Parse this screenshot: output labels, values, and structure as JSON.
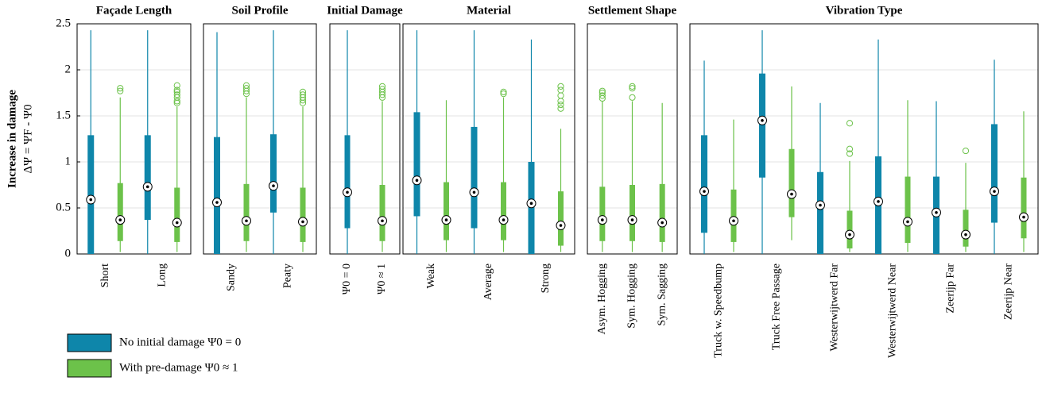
{
  "chart_data": [
    {
      "type": "box",
      "title": "Façade Length",
      "ylabel": [
        "Increase in damage",
        "ΔΨ = ΨF - Ψ0"
      ],
      "ylim": [
        0,
        2.5
      ],
      "yticks": [
        0,
        0.5,
        1,
        1.5,
        2,
        2.5
      ],
      "grid": true,
      "categories": [
        "Short",
        "Long"
      ],
      "series": [
        {
          "name": "No initial damage Ψ0 = 0",
          "color": "#0e86aa",
          "values": [
            {
              "min": 0,
              "q1": 0,
              "median": 0.59,
              "q3": 1.29,
              "max": 2.43,
              "outliers": []
            },
            {
              "min": 0,
              "q1": 0.37,
              "median": 0.73,
              "q3": 1.29,
              "max": 2.43,
              "outliers": []
            }
          ]
        },
        {
          "name": "With pre-damage Ψ0 ≈ 1",
          "color": "#6cc24a",
          "values": [
            {
              "min": 0.02,
              "q1": 0.14,
              "median": 0.37,
              "q3": 0.77,
              "max": 1.7,
              "outliers": [
                1.77,
                1.8
              ]
            },
            {
              "min": 0.02,
              "q1": 0.13,
              "median": 0.34,
              "q3": 0.72,
              "max": 1.6,
              "outliers": [
                1.64,
                1.66,
                1.7,
                1.73,
                1.76,
                1.78,
                1.83
              ]
            }
          ]
        }
      ]
    },
    {
      "type": "box",
      "title": "Soil Profile",
      "ylim": [
        0,
        2.5
      ],
      "grid": true,
      "categories": [
        "Sandy",
        "Peaty"
      ],
      "series": [
        {
          "color": "#0e86aa",
          "values": [
            {
              "min": 0,
              "q1": 0,
              "median": 0.56,
              "q3": 1.27,
              "max": 2.41,
              "outliers": []
            },
            {
              "min": 0,
              "q1": 0.45,
              "median": 0.74,
              "q3": 1.3,
              "max": 2.43,
              "outliers": []
            }
          ]
        },
        {
          "color": "#6cc24a",
          "values": [
            {
              "min": 0.02,
              "q1": 0.14,
              "median": 0.36,
              "q3": 0.76,
              "max": 1.7,
              "outliers": [
                1.74,
                1.77,
                1.8,
                1.83
              ]
            },
            {
              "min": 0.02,
              "q1": 0.13,
              "median": 0.35,
              "q3": 0.72,
              "max": 1.6,
              "outliers": [
                1.64,
                1.67,
                1.7,
                1.73,
                1.76
              ]
            }
          ]
        }
      ]
    },
    {
      "type": "box",
      "title": "Initial Damage",
      "ylim": [
        0,
        2.5
      ],
      "grid": true,
      "categories": [
        "Ψ0 = 0",
        "Ψ0 ≈ 1"
      ],
      "series": [
        {
          "color": "#0e86aa",
          "values": [
            {
              "min": 0,
              "q1": 0.28,
              "median": 0.67,
              "q3": 1.29,
              "max": 2.43,
              "outliers": []
            },
            null
          ]
        },
        {
          "color": "#6cc24a",
          "values": [
            null,
            {
              "min": 0.02,
              "q1": 0.14,
              "median": 0.36,
              "q3": 0.75,
              "max": 1.66,
              "outliers": [
                1.7,
                1.73,
                1.76,
                1.79,
                1.82
              ]
            }
          ]
        }
      ]
    },
    {
      "type": "box",
      "title": "Material",
      "ylim": [
        0,
        2.5
      ],
      "grid": true,
      "categories": [
        "Weak",
        "Average",
        "Strong"
      ],
      "series": [
        {
          "color": "#0e86aa",
          "values": [
            {
              "min": 0,
              "q1": 0.41,
              "median": 0.8,
              "q3": 1.54,
              "max": 2.43,
              "outliers": []
            },
            {
              "min": 0,
              "q1": 0.28,
              "median": 0.67,
              "q3": 1.38,
              "max": 2.43,
              "outliers": []
            },
            {
              "min": 0,
              "q1": 0,
              "median": 0.55,
              "q3": 1.0,
              "max": 2.33,
              "outliers": []
            }
          ]
        },
        {
          "color": "#6cc24a",
          "values": [
            {
              "min": 0.02,
              "q1": 0.15,
              "median": 0.37,
              "q3": 0.78,
              "max": 1.67,
              "outliers": []
            },
            {
              "min": 0.02,
              "q1": 0.15,
              "median": 0.37,
              "q3": 0.78,
              "max": 1.7,
              "outliers": [
                1.74,
                1.76
              ]
            },
            {
              "min": 0.02,
              "q1": 0.09,
              "median": 0.31,
              "q3": 0.68,
              "max": 1.36,
              "outliers": [
                1.58,
                1.62,
                1.66,
                1.72,
                1.78,
                1.82
              ]
            }
          ]
        }
      ]
    },
    {
      "type": "box",
      "title": "Settlement Shape",
      "ylim": [
        0,
        2.5
      ],
      "grid": true,
      "categories": [
        "Asym. Hogging",
        "Sym. Hogging",
        "Sym. Sagging"
      ],
      "series": [
        {
          "color": "#6cc24a",
          "values": [
            {
              "min": 0.02,
              "q1": 0.14,
              "median": 0.37,
              "q3": 0.73,
              "max": 1.66,
              "outliers": [
                1.69,
                1.72,
                1.75,
                1.77
              ]
            },
            {
              "min": 0.02,
              "q1": 0.14,
              "median": 0.37,
              "q3": 0.75,
              "max": 1.66,
              "outliers": [
                1.7,
                1.8,
                1.82
              ]
            },
            {
              "min": 0.02,
              "q1": 0.13,
              "median": 0.34,
              "q3": 0.76,
              "max": 1.64,
              "outliers": []
            }
          ]
        }
      ]
    },
    {
      "type": "box",
      "title": "Vibration Type",
      "ylim": [
        0,
        2.5
      ],
      "grid": true,
      "categories": [
        "Truck w. Speedbump",
        "Truck Free Passage",
        "Westerwijtwerd Far",
        "Westerwijtwerd Near",
        "Zeerijp Far",
        "Zeerijp Near"
      ],
      "series": [
        {
          "color": "#0e86aa",
          "values": [
            {
              "min": 0,
              "q1": 0.23,
              "median": 0.68,
              "q3": 1.29,
              "max": 2.1,
              "outliers": []
            },
            {
              "min": 0,
              "q1": 0.83,
              "median": 1.45,
              "q3": 1.96,
              "max": 2.43,
              "outliers": []
            },
            {
              "min": 0,
              "q1": 0,
              "median": 0.53,
              "q3": 0.89,
              "max": 1.64,
              "outliers": []
            },
            {
              "min": 0,
              "q1": 0,
              "median": 0.57,
              "q3": 1.06,
              "max": 2.33,
              "outliers": []
            },
            {
              "min": 0,
              "q1": 0,
              "median": 0.45,
              "q3": 0.84,
              "max": 1.66,
              "outliers": []
            },
            {
              "min": 0,
              "q1": 0.34,
              "median": 0.68,
              "q3": 1.41,
              "max": 2.11,
              "outliers": []
            }
          ]
        },
        {
          "color": "#6cc24a",
          "values": [
            {
              "min": 0.02,
              "q1": 0.13,
              "median": 0.36,
              "q3": 0.7,
              "max": 1.46,
              "outliers": []
            },
            {
              "min": 0.15,
              "q1": 0.4,
              "median": 0.65,
              "q3": 1.14,
              "max": 1.82,
              "outliers": []
            },
            {
              "min": 0.02,
              "q1": 0.06,
              "median": 0.21,
              "q3": 0.47,
              "max": 1.01,
              "outliers": [
                1.09,
                1.14,
                1.42
              ]
            },
            {
              "min": 0.02,
              "q1": 0.12,
              "median": 0.35,
              "q3": 0.84,
              "max": 1.67,
              "outliers": []
            },
            {
              "min": 0.02,
              "q1": 0.08,
              "median": 0.21,
              "q3": 0.48,
              "max": 0.99,
              "outliers": [
                1.12
              ]
            },
            {
              "min": 0.02,
              "q1": 0.17,
              "median": 0.4,
              "q3": 0.83,
              "max": 1.55,
              "outliers": []
            }
          ]
        }
      ]
    }
  ]
}
